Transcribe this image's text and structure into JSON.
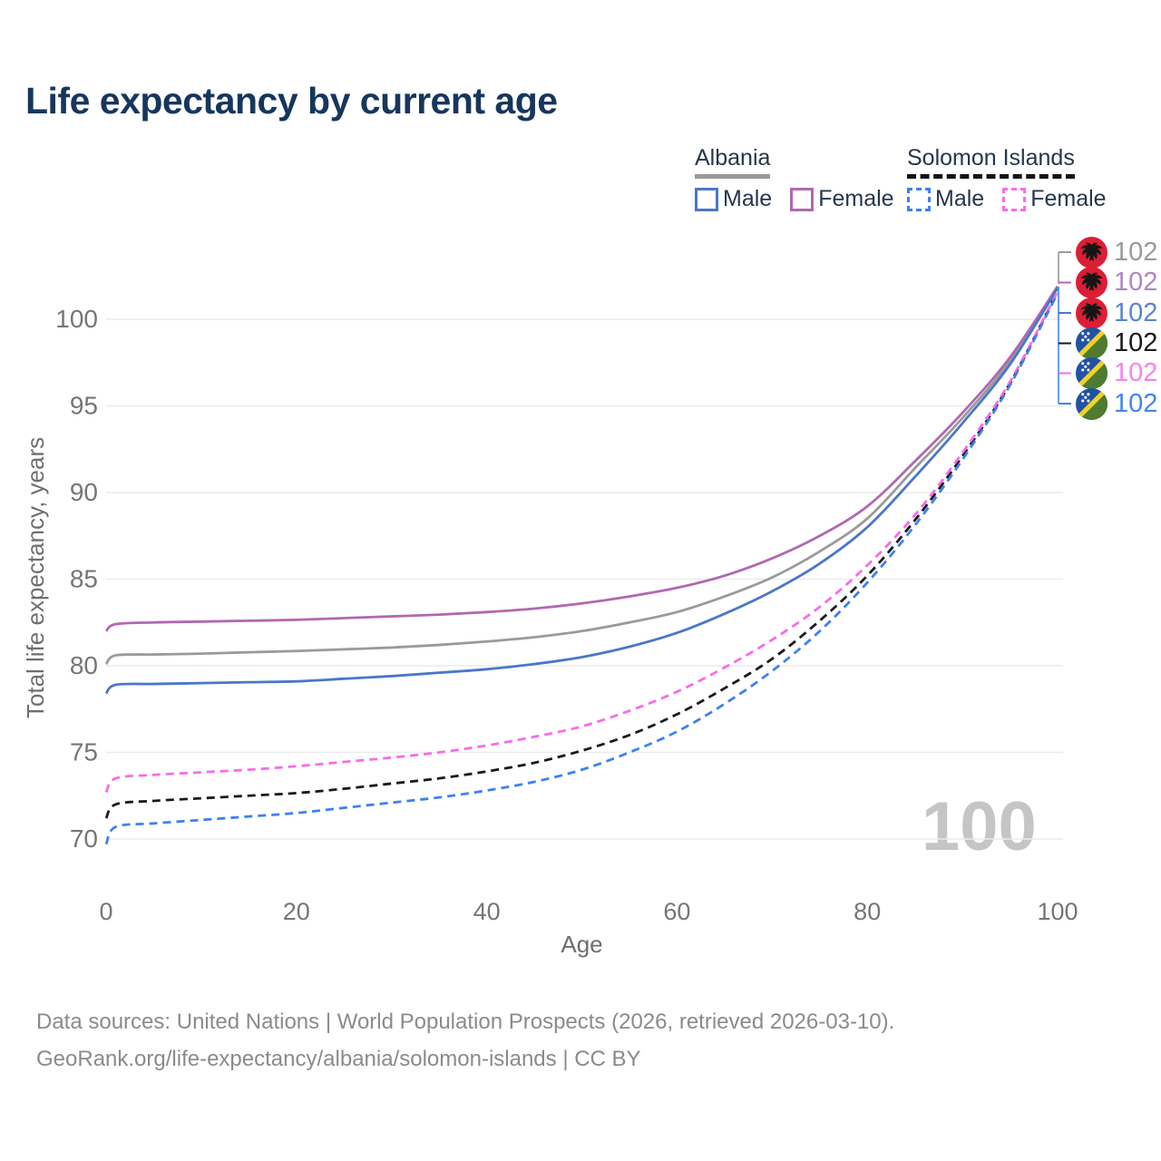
{
  "title": "Life expectancy by current age",
  "legend": {
    "albania": {
      "label": "Albania",
      "male_label": "Male",
      "female_label": "Female",
      "male_color": "#4a77c9",
      "female_color": "#b168b1",
      "line_style": "solid",
      "underline_color": "#9a9a9a"
    },
    "solomon_islands": {
      "label": "Solomon Islands",
      "male_label": "Male",
      "female_label": "Female",
      "male_color": "#3c82f0",
      "female_color": "#f86ce8",
      "line_style": "dashed",
      "underline_color": "#141414"
    }
  },
  "watermark": "100",
  "footer": {
    "line1": "Data sources: United Nations | World Population Prospects (2026, retrieved 2026-03-10).",
    "line2": "GeoRank.org/life-expectancy/albania/solomon-islands | CC BY"
  },
  "chart_data": {
    "type": "line",
    "title": "Life expectancy by current age",
    "xlabel": "Age",
    "ylabel": "Total life expectancy, years",
    "xlim": [
      0,
      100
    ],
    "ylim": [
      68.5,
      103
    ],
    "xticks": [
      0,
      20,
      40,
      60,
      80,
      100
    ],
    "yticks": [
      70,
      75,
      80,
      85,
      90,
      95,
      100
    ],
    "grid": "horizontal-only",
    "gridline_color": "#ececec",
    "legend_position": "top-right",
    "x": [
      0,
      1,
      5,
      10,
      15,
      20,
      25,
      30,
      35,
      40,
      45,
      50,
      55,
      60,
      65,
      70,
      75,
      80,
      85,
      90,
      95,
      100
    ],
    "series": [
      {
        "id": "albania-both",
        "name": "Albania Both sexes",
        "country": "Albania",
        "flag": "albania",
        "sex": "both",
        "color": "#9a9a9a",
        "label_color": "#9a9a9a",
        "dash": "solid",
        "end_label": "102",
        "values": [
          80.1,
          80.6,
          80.65,
          80.7,
          80.78,
          80.85,
          80.95,
          81.05,
          81.2,
          81.4,
          81.65,
          82.0,
          82.5,
          83.1,
          84.0,
          85.1,
          86.6,
          88.5,
          91.4,
          94.3,
          97.6,
          101.9
        ]
      },
      {
        "id": "albania-female",
        "name": "Albania Female",
        "country": "Albania",
        "flag": "albania",
        "sex": "female",
        "color": "#b168b1",
        "label_color": "#b184c4",
        "dash": "solid",
        "end_label": "102",
        "values": [
          82.0,
          82.4,
          82.5,
          82.55,
          82.6,
          82.65,
          82.75,
          82.85,
          82.95,
          83.1,
          83.3,
          83.6,
          84.0,
          84.5,
          85.2,
          86.2,
          87.5,
          89.2,
          91.8,
          94.6,
          97.8,
          101.9
        ]
      },
      {
        "id": "albania-male",
        "name": "Albania Male",
        "country": "Albania",
        "flag": "albania",
        "sex": "male",
        "color": "#4a77c9",
        "label_color": "#5b84d6",
        "dash": "solid",
        "end_label": "102",
        "values": [
          78.4,
          78.9,
          78.95,
          79.0,
          79.05,
          79.1,
          79.25,
          79.4,
          79.6,
          79.8,
          80.1,
          80.5,
          81.1,
          81.9,
          83.0,
          84.3,
          85.9,
          88.0,
          90.9,
          94.0,
          97.4,
          101.8
        ]
      },
      {
        "id": "solomon-both",
        "name": "Solomon Islands Both sexes",
        "country": "Solomon Islands",
        "flag": "solomon",
        "sex": "both",
        "color": "#1a1a1a",
        "label_color": "#1a1a1a",
        "dash": "dashed",
        "end_label": "102",
        "values": [
          71.2,
          72.0,
          72.2,
          72.35,
          72.5,
          72.65,
          72.9,
          73.2,
          73.5,
          73.9,
          74.4,
          75.1,
          76.0,
          77.2,
          78.7,
          80.4,
          82.6,
          85.2,
          88.4,
          92.1,
          96.3,
          101.6
        ]
      },
      {
        "id": "solomon-female",
        "name": "Solomon Islands Female",
        "country": "Solomon Islands",
        "flag": "solomon",
        "sex": "female",
        "color": "#f86ce8",
        "label_color": "#fb80ea",
        "dash": "dashed",
        "end_label": "102",
        "values": [
          72.7,
          73.5,
          73.7,
          73.85,
          74.0,
          74.2,
          74.45,
          74.7,
          75.0,
          75.4,
          75.9,
          76.5,
          77.4,
          78.5,
          79.9,
          81.5,
          83.4,
          85.8,
          88.7,
          92.3,
          96.4,
          101.6
        ]
      },
      {
        "id": "solomon-male",
        "name": "Solomon Islands Male",
        "country": "Solomon Islands",
        "flag": "solomon",
        "sex": "male",
        "color": "#3c82f0",
        "label_color": "#4285f4",
        "dash": "dashed",
        "end_label": "102",
        "values": [
          69.7,
          70.7,
          70.9,
          71.1,
          71.3,
          71.5,
          71.8,
          72.1,
          72.4,
          72.8,
          73.3,
          74.0,
          75.0,
          76.2,
          77.8,
          79.7,
          82.0,
          84.8,
          88.1,
          91.9,
          96.2,
          101.5
        ]
      }
    ]
  }
}
